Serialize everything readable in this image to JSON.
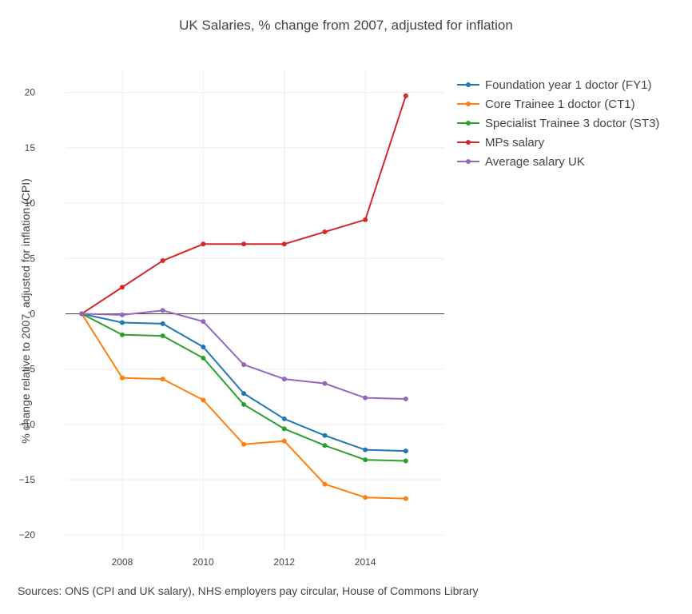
{
  "chart_data": {
    "type": "line",
    "title": "UK Salaries, % change from 2007, adjusted for inflation",
    "xlabel": "",
    "ylabel": "% change relative to 2007, adjusted for inflation  (CPI)",
    "x": [
      2007,
      2008,
      2009,
      2010,
      2011,
      2012,
      2013,
      2014,
      2015
    ],
    "xlim": [
      2006.6,
      2015.95
    ],
    "ylim": [
      -21.5,
      22
    ],
    "xticks": [
      2008,
      2010,
      2012,
      2014
    ],
    "yticks": [
      20,
      15,
      10,
      5,
      0,
      -5,
      -10,
      -15,
      -20
    ],
    "ytick_labels": [
      "20",
      "15",
      "10",
      "5",
      "0",
      "−5",
      "−10",
      "−15",
      "−20"
    ],
    "grid": true,
    "legend_position": "top-right outside",
    "series": [
      {
        "name": "Foundation year 1 doctor (FY1)",
        "color": "#1f77b4",
        "values": [
          0,
          -0.8,
          -0.9,
          -3.0,
          -7.2,
          -9.5,
          -11.0,
          -12.3,
          -12.4
        ]
      },
      {
        "name": "Core Trainee 1 doctor (CT1)",
        "color": "#ff7f0e",
        "values": [
          0,
          -5.8,
          -5.9,
          -7.8,
          -11.8,
          -11.5,
          -15.4,
          -16.6,
          -16.7
        ]
      },
      {
        "name": "Specialist Trainee 3 doctor (ST3)",
        "color": "#2ca02c",
        "values": [
          0,
          -1.9,
          -2.0,
          -4.0,
          -8.2,
          -10.4,
          -11.9,
          -13.2,
          -13.3
        ]
      },
      {
        "name": "MPs salary",
        "color": "#d62728",
        "values": [
          0,
          2.4,
          4.8,
          6.3,
          6.3,
          6.3,
          7.4,
          8.5,
          19.7
        ]
      },
      {
        "name": "Average  salary UK",
        "color": "#9467bd",
        "values": [
          0,
          -0.1,
          0.3,
          -0.7,
          -4.6,
          -5.9,
          -6.3,
          -7.6,
          -7.7
        ]
      }
    ]
  },
  "source_note": "Sources: ONS (CPI and UK salary), NHS employers pay circular, House of Commons Library"
}
